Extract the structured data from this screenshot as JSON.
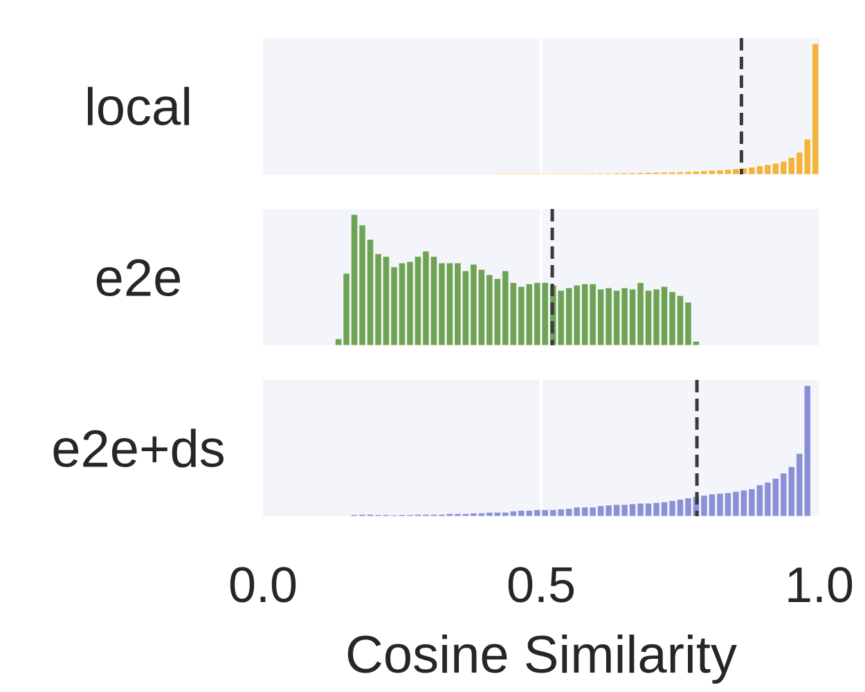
{
  "chart_data": {
    "type": "bar",
    "title": "",
    "xlabel": "Cosine Similarity",
    "ylabel": "",
    "xlim": [
      0,
      1
    ],
    "xticks": [
      {
        "value": 0.0,
        "label": "0.0"
      },
      {
        "value": 0.5,
        "label": "0.5"
      },
      {
        "value": 1.0,
        "label": "1.0"
      }
    ],
    "grid": true,
    "bin_width": 0.01429,
    "bin_count": 70,
    "series": [
      {
        "name": "local",
        "color": "#f2b33d",
        "mean_line": 0.86,
        "relative_heights": [
          0,
          0,
          0,
          0,
          0,
          0,
          0,
          0,
          0,
          0,
          0,
          0,
          0,
          0,
          0,
          0,
          0,
          0,
          0,
          0,
          0,
          0,
          0,
          0,
          0,
          0,
          0,
          0,
          0,
          0.002,
          0.002,
          0.003,
          0.003,
          0.003,
          0.003,
          0.004,
          0.005,
          0.005,
          0.006,
          0.007,
          0.008,
          0.008,
          0.009,
          0.01,
          0.011,
          0.012,
          0.012,
          0.014,
          0.015,
          0.016,
          0.017,
          0.018,
          0.02,
          0.022,
          0.025,
          0.028,
          0.031,
          0.034,
          0.038,
          0.043,
          0.049,
          0.056,
          0.066,
          0.075,
          0.085,
          0.1,
          0.13,
          0.17,
          0.27,
          1.0
        ]
      },
      {
        "name": "e2e",
        "color": "#6ea255",
        "mean_line": 0.52,
        "relative_heights": [
          0,
          0,
          0,
          0,
          0,
          0,
          0,
          0,
          0,
          0.05,
          0.55,
          1.0,
          0.92,
          0.81,
          0.7,
          0.68,
          0.6,
          0.63,
          0.64,
          0.68,
          0.72,
          0.68,
          0.63,
          0.63,
          0.63,
          0.57,
          0.62,
          0.58,
          0.54,
          0.51,
          0.57,
          0.48,
          0.45,
          0.47,
          0.48,
          0.48,
          0.46,
          0.42,
          0.44,
          0.46,
          0.47,
          0.47,
          0.43,
          0.44,
          0.42,
          0.44,
          0.43,
          0.48,
          0.42,
          0.43,
          0.45,
          0.41,
          0.38,
          0.33,
          0.03,
          0,
          0,
          0,
          0,
          0,
          0,
          0,
          0,
          0,
          0,
          0,
          0,
          0,
          0,
          0
        ]
      },
      {
        "name": "e2e+ds",
        "color": "#8b90d6",
        "mean_line": 0.78,
        "relative_heights": [
          0,
          0,
          0,
          0,
          0,
          0,
          0,
          0,
          0,
          0,
          0,
          0.012,
          0.015,
          0.015,
          0.012,
          0.012,
          0.01,
          0.012,
          0.012,
          0.015,
          0.015,
          0.015,
          0.015,
          0.02,
          0.02,
          0.02,
          0.025,
          0.025,
          0.03,
          0.03,
          0.03,
          0.04,
          0.045,
          0.045,
          0.05,
          0.05,
          0.05,
          0.055,
          0.06,
          0.07,
          0.07,
          0.07,
          0.08,
          0.085,
          0.09,
          0.09,
          0.095,
          0.1,
          0.1,
          0.105,
          0.11,
          0.12,
          0.13,
          0.14,
          0.15,
          0.16,
          0.17,
          0.175,
          0.18,
          0.19,
          0.2,
          0.21,
          0.24,
          0.26,
          0.29,
          0.33,
          0.38,
          0.48,
          1.0,
          0
        ]
      }
    ]
  }
}
